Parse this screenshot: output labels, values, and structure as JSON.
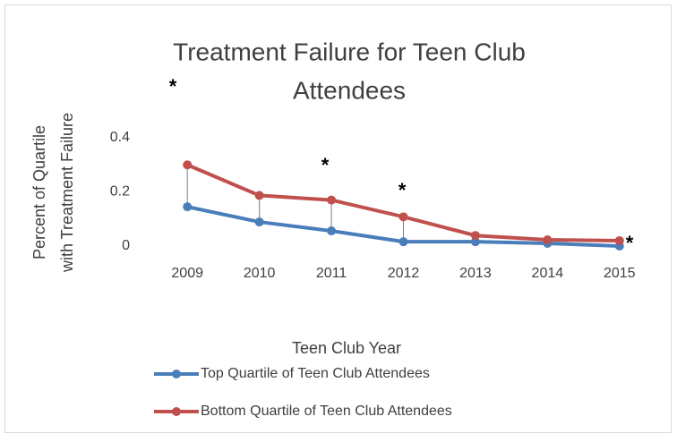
{
  "chart_data": {
    "type": "line",
    "title": "Treatment Failure for Teen Club Attendees",
    "title_lines": [
      "Treatment Failure for Teen Club",
      "Attendees"
    ],
    "y_label_lines": [
      "Percent of Quartile",
      "with Treatment Failure"
    ],
    "x_label": "Teen Club Year",
    "categories": [
      "2009",
      "2010",
      "2011",
      "2012",
      "2013",
      "2014",
      "2015"
    ],
    "series": [
      {
        "name": "Top Quartile of Teen Club Attendees",
        "color": "#4a7ebb",
        "values": [
          0.145,
          0.089,
          0.056,
          0.016,
          0.016,
          0.01,
          0
        ]
      },
      {
        "name": "Bottom Quartile of Teen Club Attendees",
        "color": "#c0504d",
        "values": [
          0.3,
          0.187,
          0.17,
          0.108,
          0.039,
          0.023,
          0.02
        ]
      }
    ],
    "annotations": [
      "*",
      "*",
      "*",
      "*"
    ],
    "ylim": [
      0,
      0.4
    ],
    "yticks": [
      0,
      0.2,
      0.4
    ],
    "drop_lines": true,
    "grid": false,
    "legend": "bottom"
  }
}
